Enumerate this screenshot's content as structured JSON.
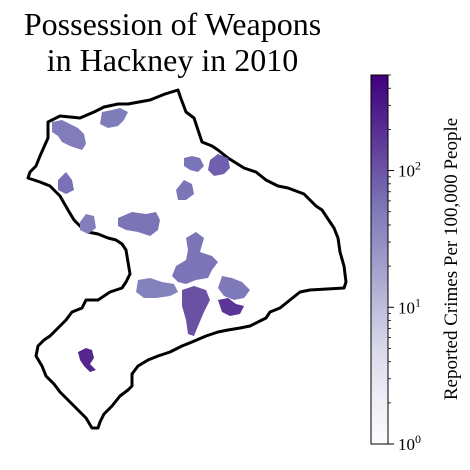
{
  "title": [
    "Possession of Weapons",
    "in Hackney in 2010"
  ],
  "colorbar": {
    "label": "Reported Crimes Per 100,000 People",
    "scale": "log",
    "range": [
      1,
      500
    ],
    "ticks": [
      {
        "base": "10",
        "exp": "0",
        "value": 1
      },
      {
        "base": "10",
        "exp": "1",
        "value": 10
      },
      {
        "base": "10",
        "exp": "2",
        "value": 100
      }
    ],
    "colors": [
      "#fcfbfd",
      "#efedf5",
      "#dadaeb",
      "#bcbddc",
      "#9e9ac8",
      "#807dba",
      "#6a51a3",
      "#54278f",
      "#3f007d"
    ]
  },
  "colors": {
    "border": "#000000",
    "background": "#ffffff"
  }
}
